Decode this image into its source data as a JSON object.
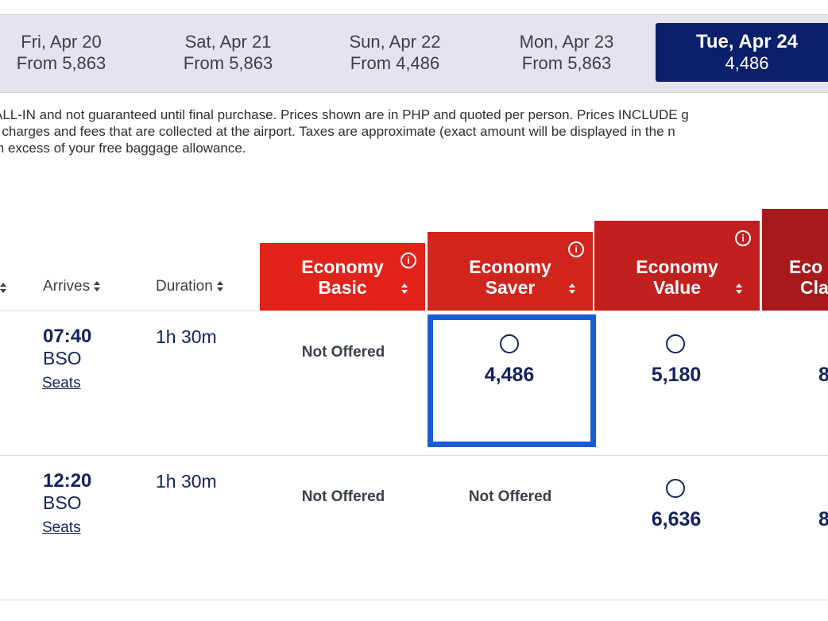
{
  "date_tabs": [
    {
      "day": "Fri, Apr 20",
      "price": "From 5,863"
    },
    {
      "day": "Sat, Apr 21",
      "price": "From 5,863"
    },
    {
      "day": "Sun, Apr 22",
      "price": "From 4,486"
    },
    {
      "day": "Mon, Apr 23",
      "price": "From 5,863"
    },
    {
      "day": "Tue, Apr 24",
      "price": "4,486"
    }
  ],
  "disclaimer": [
    "ALL-IN and not guaranteed until final purchase. Prices shown are in PHP and quoted per person. Prices INCLUDE g",
    "r charges and fees that are collected at the airport. Taxes are approximate (exact amount will be displayed in the n",
    "in excess of your free baggage allowance."
  ],
  "columns": {
    "arrives": "Arrives",
    "duration": "Duration"
  },
  "fares": [
    {
      "line1": "Economy",
      "line2": "Basic",
      "color": "#e2231a"
    },
    {
      "line1": "Economy",
      "line2": "Saver",
      "color": "#d1241c"
    },
    {
      "line1": "Economy",
      "line2": "Value",
      "color": "#c21f1f"
    },
    {
      "line1": "Eco",
      "line2": "Cla",
      "color": "#a8191b"
    }
  ],
  "info_glyph": "i",
  "flights": [
    {
      "arrive_time": "07:40",
      "arrive_code": "BSO",
      "seats": "Seats",
      "duration": "1h 30m",
      "basic": "Not Offered",
      "saver": "4,486",
      "value": "5,180",
      "classic": "8"
    },
    {
      "arrive_time": "12:20",
      "arrive_code": "BSO",
      "seats": "Seats",
      "duration": "1h 30m",
      "basic": "Not Offered",
      "saver": "Not Offered",
      "value": "6,636",
      "classic": "8"
    }
  ],
  "colors": {
    "selected_date_bg": "#0b1f6b",
    "selection_border": "#1a5bd6",
    "text_navy": "#13225e"
  }
}
